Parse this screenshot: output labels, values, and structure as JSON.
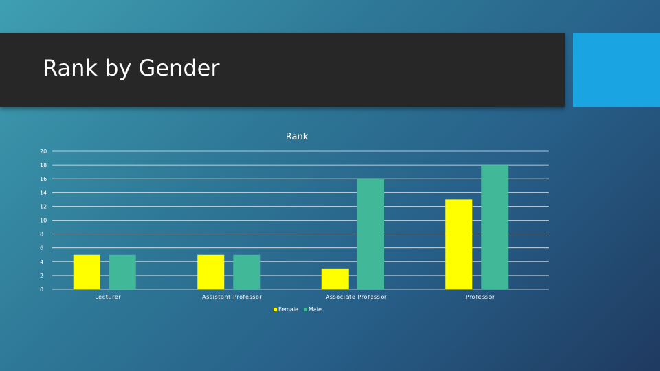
{
  "slide": {
    "title": "Rank by Gender"
  },
  "colors": {
    "title_band": "#272727",
    "accent": "#1ba4e2",
    "female": "#ffff00",
    "male": "#41b898",
    "grid": "#ffffff",
    "text": "#ffffff"
  },
  "chart_data": {
    "type": "bar",
    "title": "Rank",
    "categories": [
      "Lecturer",
      "Assistant Professor",
      "Associate Professor",
      "Professor"
    ],
    "series": [
      {
        "name": "Female",
        "values": [
          5,
          5,
          3,
          13
        ]
      },
      {
        "name": "Male",
        "values": [
          5,
          5,
          16,
          18
        ]
      }
    ],
    "ylim": [
      0,
      20
    ],
    "yticks": [
      0,
      2,
      4,
      6,
      8,
      10,
      12,
      14,
      16,
      18,
      20
    ],
    "grid": true,
    "legend": "bottom-center"
  }
}
